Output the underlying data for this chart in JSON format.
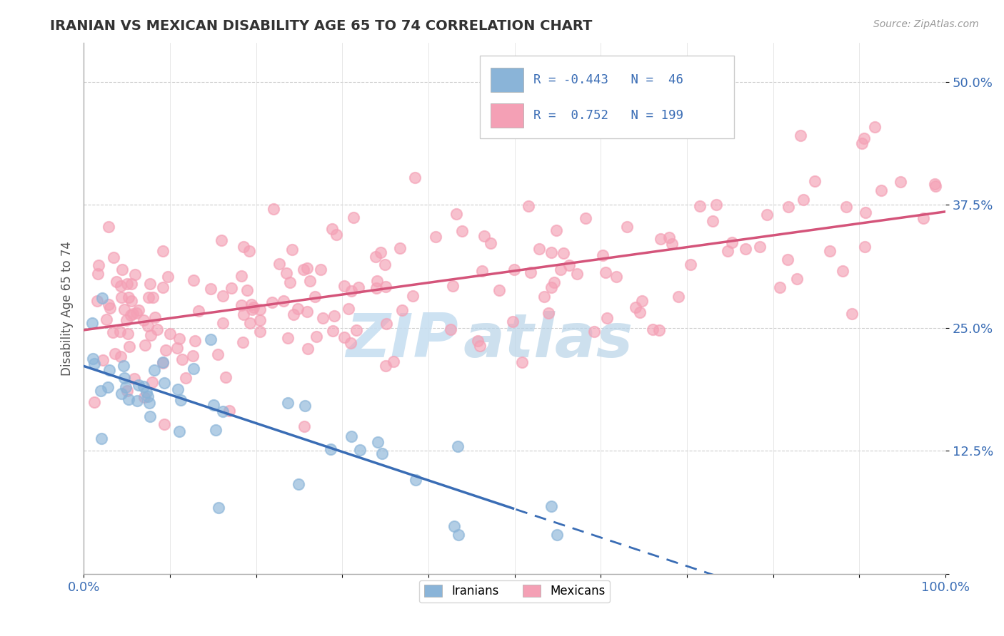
{
  "title": "IRANIAN VS MEXICAN DISABILITY AGE 65 TO 74 CORRELATION CHART",
  "source_text": "Source: ZipAtlas.com",
  "ylabel": "Disability Age 65 to 74",
  "xmin": 0.0,
  "xmax": 1.0,
  "ymin": 0.0,
  "ymax": 0.54,
  "yticks": [
    0.0,
    0.125,
    0.25,
    0.375,
    0.5
  ],
  "ytick_labels": [
    "",
    "12.5%",
    "25.0%",
    "37.5%",
    "50.0%"
  ],
  "legend_R1": "-0.443",
  "legend_N1": "46",
  "legend_R2": "0.752",
  "legend_N2": "199",
  "iranian_color": "#8ab4d8",
  "mexican_color": "#f4a0b5",
  "iranian_line_color": "#3a6db5",
  "mexican_line_color": "#d4547a",
  "background_color": "#ffffff",
  "watermark_text": "ZIPatlas",
  "watermark_color": "#cce4f0",
  "iran_seed": 12,
  "mex_seed": 7
}
